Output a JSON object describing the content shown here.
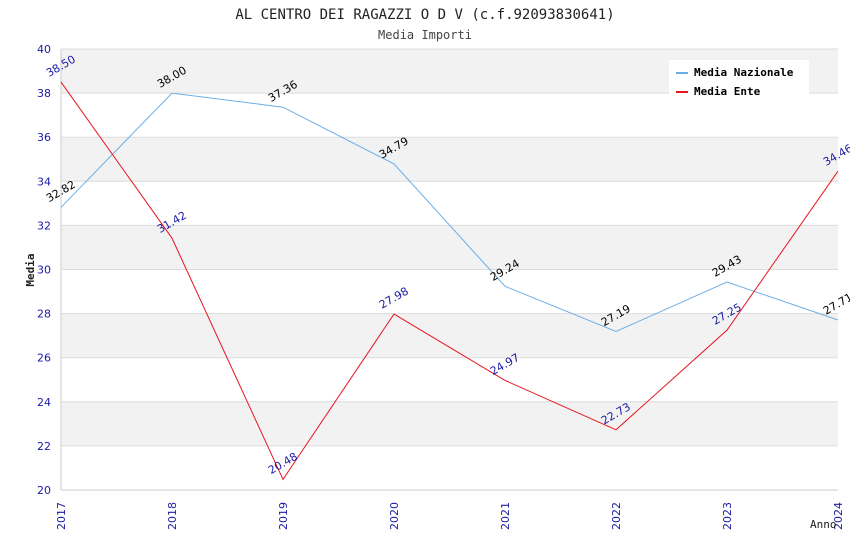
{
  "chart_data": {
    "type": "line",
    "title": "AL CENTRO DEI RAGAZZI O D V (c.f.92093830641)",
    "subtitle": "Media Importi",
    "xlabel": "Anno",
    "ylabel": "Media",
    "x": [
      "2017",
      "2018",
      "2019",
      "2020",
      "2021",
      "2022",
      "2023",
      "2024"
    ],
    "ylim": [
      20,
      40
    ],
    "yticks": [
      20,
      22,
      24,
      26,
      28,
      30,
      32,
      34,
      36,
      38,
      40
    ],
    "grid": true,
    "legend_position": "top-right",
    "series": [
      {
        "name": "Media Nazionale",
        "color": "#6aaee8",
        "label_color": "#000000",
        "values": [
          32.82,
          38.0,
          37.36,
          34.79,
          29.24,
          27.19,
          29.43,
          27.71
        ]
      },
      {
        "name": "Media Ente",
        "color": "#e8141e",
        "label_color": "#1a1aa6",
        "values": [
          38.5,
          31.42,
          20.48,
          27.98,
          24.97,
          22.73,
          27.25,
          34.46
        ]
      }
    ],
    "colors": {
      "band": "#f2f2f2",
      "gridline": "#dcdcdc",
      "tick_label": "#1a1aa6",
      "text": "#333333"
    }
  }
}
